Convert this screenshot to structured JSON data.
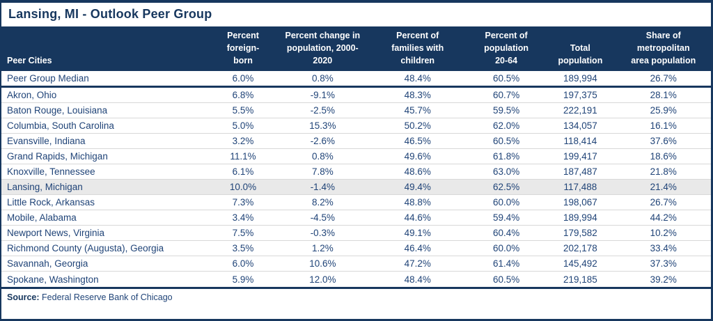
{
  "title": "Lansing, MI - Outlook Peer Group",
  "colors": {
    "navy": "#17375E",
    "body_text": "#1F4377",
    "header_text": "#FFFFFF",
    "highlight_row": "#E9E9E9",
    "row_separator": "#D8D8D8"
  },
  "footer": {
    "source_label": "Source:",
    "source_text": "Federal Reserve Bank of Chicago"
  },
  "chart_data": {
    "type": "table",
    "title": "Lansing, MI - Outlook Peer Group",
    "row_header_label": "Peer Cities",
    "columns": [
      "Percent\nforeign-\nborn",
      "Percent change in\npopulation, 2000-\n2020",
      "Percent of\nfamilies with\nchildren",
      "Percent of\npopulation\n20-64",
      "Total\npopulation",
      "Share of\nmetropolitan\narea population"
    ],
    "median": {
      "name": "Peer Group Median",
      "values": [
        "6.0%",
        "0.8%",
        "48.4%",
        "60.5%",
        "189,994",
        "26.7%"
      ]
    },
    "rows": [
      {
        "name": "Akron, Ohio",
        "highlight": false,
        "values": [
          "6.8%",
          "-9.1%",
          "48.3%",
          "60.7%",
          "197,375",
          "28.1%"
        ]
      },
      {
        "name": "Baton Rouge, Louisiana",
        "highlight": false,
        "values": [
          "5.5%",
          "-2.5%",
          "45.7%",
          "59.5%",
          "222,191",
          "25.9%"
        ]
      },
      {
        "name": "Columbia, South Carolina",
        "highlight": false,
        "values": [
          "5.0%",
          "15.3%",
          "50.2%",
          "62.0%",
          "134,057",
          "16.1%"
        ]
      },
      {
        "name": "Evansville, Indiana",
        "highlight": false,
        "values": [
          "3.2%",
          "-2.6%",
          "46.5%",
          "60.5%",
          "118,414",
          "37.6%"
        ]
      },
      {
        "name": "Grand Rapids, Michigan",
        "highlight": false,
        "values": [
          "11.1%",
          "0.8%",
          "49.6%",
          "61.8%",
          "199,417",
          "18.6%"
        ]
      },
      {
        "name": "Knoxville, Tennessee",
        "highlight": false,
        "values": [
          "6.1%",
          "7.8%",
          "48.6%",
          "63.0%",
          "187,487",
          "21.8%"
        ]
      },
      {
        "name": "Lansing, Michigan",
        "highlight": true,
        "values": [
          "10.0%",
          "-1.4%",
          "49.4%",
          "62.5%",
          "117,488",
          "21.4%"
        ]
      },
      {
        "name": "Little Rock, Arkansas",
        "highlight": false,
        "values": [
          "7.3%",
          "8.2%",
          "48.8%",
          "60.0%",
          "198,067",
          "26.7%"
        ]
      },
      {
        "name": "Mobile, Alabama",
        "highlight": false,
        "values": [
          "3.4%",
          "-4.5%",
          "44.6%",
          "59.4%",
          "189,994",
          "44.2%"
        ]
      },
      {
        "name": "Newport News, Virginia",
        "highlight": false,
        "values": [
          "7.5%",
          "-0.3%",
          "49.1%",
          "60.4%",
          "179,582",
          "10.2%"
        ]
      },
      {
        "name": "Richmond County (Augusta), Georgia",
        "highlight": false,
        "values": [
          "3.5%",
          "1.2%",
          "46.4%",
          "60.0%",
          "202,178",
          "33.4%"
        ]
      },
      {
        "name": "Savannah, Georgia",
        "highlight": false,
        "values": [
          "6.0%",
          "10.6%",
          "47.2%",
          "61.4%",
          "145,492",
          "37.3%"
        ]
      },
      {
        "name": "Spokane, Washington",
        "highlight": false,
        "values": [
          "5.9%",
          "12.0%",
          "48.4%",
          "60.5%",
          "219,185",
          "39.2%"
        ]
      }
    ]
  }
}
